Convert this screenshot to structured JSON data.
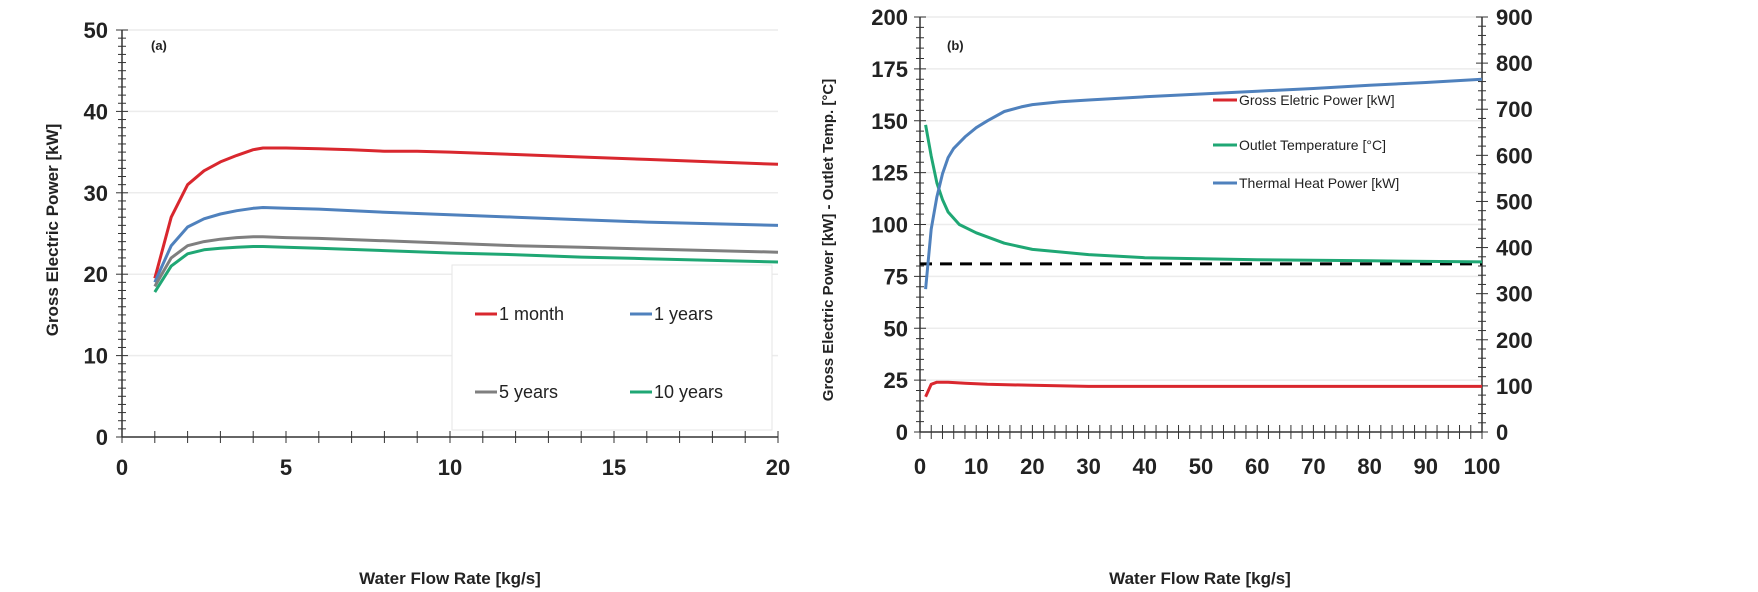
{
  "chart_data": [
    {
      "type": "line",
      "panel_label": "(a)",
      "xlabel": "Water Flow Rate [kg/s]",
      "ylabel": "Gross Electric Power [kW]",
      "xlim": [
        0,
        20
      ],
      "ylim": [
        0,
        50
      ],
      "xticks": [
        0,
        5,
        10,
        15,
        20
      ],
      "yticks": [
        0,
        10,
        20,
        30,
        40,
        50
      ],
      "grid": true,
      "legend_position": "bottom-right",
      "series": [
        {
          "name": "1 month",
          "color": "#d9272e",
          "x": [
            1,
            1.5,
            2,
            2.5,
            3,
            3.5,
            4,
            4.3,
            5,
            6,
            7,
            8,
            9,
            10,
            12,
            14,
            16,
            18,
            20
          ],
          "y": [
            19.5,
            27.0,
            31.0,
            32.7,
            33.8,
            34.6,
            35.3,
            35.5,
            35.5,
            35.4,
            35.3,
            35.1,
            35.1,
            35.0,
            34.7,
            34.4,
            34.1,
            33.8,
            33.5
          ]
        },
        {
          "name": "1 years",
          "color": "#4f81bd",
          "x": [
            1,
            1.5,
            2,
            2.5,
            3,
            3.5,
            4,
            4.3,
            5,
            6,
            8,
            10,
            12,
            14,
            16,
            18,
            20
          ],
          "y": [
            19.0,
            23.5,
            25.8,
            26.8,
            27.4,
            27.8,
            28.1,
            28.2,
            28.1,
            28.0,
            27.6,
            27.3,
            27.0,
            26.7,
            26.4,
            26.2,
            26.0
          ]
        },
        {
          "name": "5 years",
          "color": "#7f7f7f",
          "x": [
            1,
            1.5,
            2,
            2.5,
            3,
            3.5,
            4,
            4.3,
            5,
            6,
            8,
            10,
            12,
            14,
            16,
            18,
            20
          ],
          "y": [
            18.5,
            22.0,
            23.5,
            24.0,
            24.3,
            24.5,
            24.6,
            24.6,
            24.5,
            24.4,
            24.1,
            23.8,
            23.5,
            23.3,
            23.1,
            22.9,
            22.7
          ]
        },
        {
          "name": "10 years",
          "color": "#1fa774",
          "x": [
            1,
            1.5,
            2,
            2.5,
            3,
            3.5,
            4,
            4.3,
            5,
            6,
            8,
            10,
            12,
            14,
            16,
            18,
            20
          ],
          "y": [
            17.8,
            21.0,
            22.5,
            23.0,
            23.2,
            23.3,
            23.4,
            23.4,
            23.3,
            23.2,
            22.9,
            22.6,
            22.4,
            22.1,
            21.9,
            21.7,
            21.5
          ]
        }
      ]
    },
    {
      "type": "line",
      "panel_label": "(b)",
      "xlabel": "Water Flow Rate [kg/s]",
      "ylabel": "Gross Electric Power [kW] - Outlet Temp. [°C]",
      "xlim": [
        0,
        100
      ],
      "ylim": [
        0,
        200
      ],
      "y2lim": [
        0,
        900
      ],
      "xticks": [
        0,
        10,
        20,
        30,
        40,
        50,
        60,
        70,
        80,
        90,
        100
      ],
      "yticks": [
        0,
        25,
        50,
        75,
        100,
        125,
        150,
        175,
        200
      ],
      "y2ticks": [
        0,
        100,
        200,
        300,
        400,
        500,
        600,
        700,
        800,
        900
      ],
      "grid": true,
      "legend_position": "top-right",
      "reference_line": {
        "y": 81,
        "style": "dashed",
        "color": "#000000"
      },
      "series": [
        {
          "name": "Gross Eletric Power [kW]",
          "color": "#d9272e",
          "axis": "left",
          "x": [
            1,
            2,
            3,
            5,
            8,
            12,
            20,
            30,
            50,
            70,
            100
          ],
          "y": [
            17,
            23,
            24,
            24,
            23.5,
            23,
            22.5,
            22,
            22,
            22,
            22
          ]
        },
        {
          "name": "Outlet Temperature [°C]",
          "color": "#1fa774",
          "axis": "left",
          "x": [
            1,
            2,
            3,
            4,
            5,
            7,
            10,
            15,
            20,
            30,
            40,
            60,
            80,
            100
          ],
          "y": [
            148,
            133,
            120,
            112,
            106,
            100,
            96,
            91,
            88,
            85.5,
            84,
            83,
            82.5,
            82
          ]
        },
        {
          "name": "Thermal Heat Power [kW]",
          "color": "#4f81bd",
          "axis": "right",
          "x": [
            1,
            2,
            3,
            4,
            5,
            6,
            8,
            10,
            12,
            15,
            18,
            20,
            25,
            30,
            40,
            50,
            60,
            70,
            80,
            90,
            100
          ],
          "y": [
            310,
            440,
            510,
            560,
            595,
            615,
            640,
            660,
            675,
            695,
            705,
            710,
            716,
            720,
            727,
            733,
            739,
            745,
            752,
            758,
            765
          ]
        }
      ]
    }
  ]
}
